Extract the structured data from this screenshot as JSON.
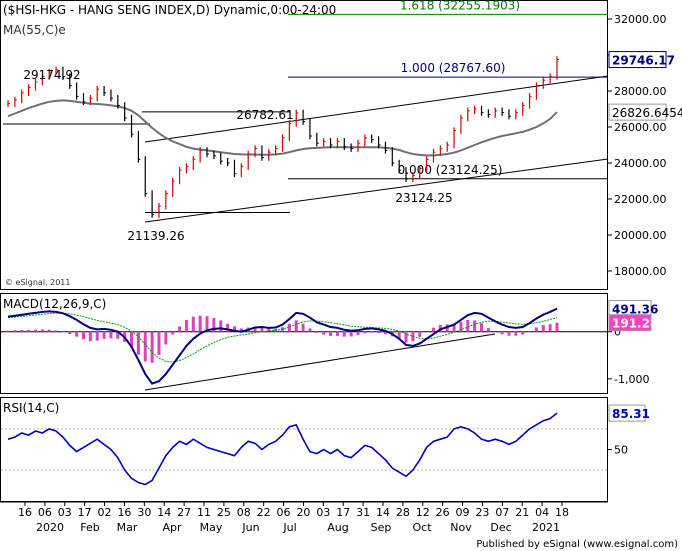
{
  "chart_data": [
    {
      "type": "line",
      "panel": "price",
      "title": "($HSI-HKG - HANG SENG INDEX,D) Dynamic,0:00-24:00",
      "subtitle": "MA(55,C)e",
      "watermark": "© eSignal, 2011",
      "series": [
        {
          "name": "$HSI-HKG",
          "color": "#d40000",
          "values": [
            27300,
            27500,
            27900,
            28200,
            28500,
            28800,
            29050,
            29174.92,
            28800,
            28300,
            27700,
            27400,
            27600,
            28100,
            27900,
            27600,
            27200,
            26500,
            25600,
            24200,
            22300,
            21139.26,
            21600,
            22300,
            23000,
            23600,
            23800,
            24200,
            24700,
            24500,
            24400,
            24100,
            24000,
            23400,
            23800,
            24500,
            24800,
            24300,
            24600,
            24800,
            25400,
            26200,
            26782.61,
            26300,
            25500,
            25100,
            25200,
            25000,
            25200,
            24900,
            24800,
            25100,
            25400,
            25300,
            25000,
            24700,
            24000,
            23600,
            23124.25,
            23300,
            23700,
            24200,
            24600,
            24800,
            25000,
            25800,
            26500,
            26900,
            27000,
            26800,
            26700,
            26900,
            26800,
            26600,
            26800,
            27200,
            27700,
            28300,
            28600,
            28800,
            29746.17
          ]
        },
        {
          "name": "MA(55,C)e",
          "color": "#707070",
          "values": [
            26600,
            26750,
            26900,
            27050,
            27180,
            27300,
            27400,
            27450,
            27480,
            27450,
            27400,
            27350,
            27300,
            27280,
            27250,
            27200,
            27150,
            27050,
            26900,
            26650,
            26300,
            25950,
            25650,
            25400,
            25200,
            25050,
            24900,
            24800,
            24750,
            24700,
            24650,
            24600,
            24550,
            24500,
            24480,
            24470,
            24470,
            24460,
            24460,
            24480,
            24520,
            24600,
            24700,
            24780,
            24820,
            24840,
            24860,
            24870,
            24880,
            24880,
            24870,
            24870,
            24880,
            24880,
            24870,
            24850,
            24800,
            24720,
            24600,
            24500,
            24450,
            24420,
            24420,
            24450,
            24500,
            24580,
            24700,
            24850,
            25000,
            25150,
            25280,
            25400,
            25500,
            25580,
            25650,
            25730,
            25850,
            26000,
            26200,
            26450,
            26826.6454
          ]
        }
      ],
      "ylim": [
        17000,
        33000
      ],
      "yticks": [
        "32000.00",
        "30000.00",
        "28000.00",
        "26000.00",
        "24000.00",
        "22000.00",
        "20000.00",
        "18000.00"
      ],
      "last_labels": [
        "29746.17",
        "26826.6454"
      ],
      "annotations": [
        "29174.92",
        "26782.61",
        "21139.26",
        "23124.25"
      ],
      "fib_lines": [
        {
          "label": "1.618 (32255.1903)",
          "value": 32255.1903,
          "color": "#008000"
        },
        {
          "label": "1.000 (28767.60)",
          "value": 28767.6,
          "color": "#000080"
        },
        {
          "label": "0.000 (23124.25)",
          "value": 23124.25,
          "color": "#000000"
        }
      ]
    },
    {
      "type": "line",
      "panel": "macd",
      "title": "MACD(12,26,9,C)",
      "ylim": [
        -1300,
        800
      ],
      "yticks": [
        "0",
        "-1,000"
      ],
      "last_labels": [
        "491.36",
        "191.28"
      ],
      "series": [
        {
          "name": "MACD",
          "color": "#000080",
          "values": [
            320,
            340,
            360,
            380,
            400,
            420,
            430,
            420,
            390,
            330,
            250,
            160,
            80,
            50,
            60,
            40,
            0,
            -120,
            -320,
            -600,
            -900,
            -1100,
            -1050,
            -900,
            -700,
            -500,
            -300,
            -150,
            -40,
            30,
            60,
            70,
            50,
            20,
            0,
            40,
            90,
            100,
            80,
            90,
            150,
            270,
            400,
            380,
            300,
            200,
            150,
            100,
            80,
            40,
            20,
            30,
            60,
            70,
            50,
            20,
            -50,
            -150,
            -280,
            -300,
            -250,
            -150,
            -50,
            50,
            100,
            150,
            250,
            350,
            400,
            380,
            300,
            220,
            150,
            100,
            80,
            100,
            180,
            280,
            360,
            420,
            491.36
          ]
        },
        {
          "name": "Signal",
          "color": "#00a000",
          "values": [
            300,
            310,
            325,
            340,
            355,
            370,
            385,
            395,
            395,
            380,
            355,
            320,
            280,
            240,
            210,
            180,
            150,
            95,
            10,
            -110,
            -270,
            -440,
            -560,
            -630,
            -640,
            -610,
            -550,
            -470,
            -380,
            -300,
            -230,
            -170,
            -120,
            -90,
            -70,
            -50,
            -20,
            0,
            15,
            30,
            55,
            100,
            160,
            210,
            230,
            225,
            210,
            190,
            170,
            145,
            120,
            105,
            95,
            90,
            80,
            70,
            50,
            10,
            -50,
            -100,
            -140,
            -150,
            -135,
            -95,
            -55,
            -10,
            40,
            100,
            160,
            200,
            220,
            220,
            205,
            185,
            165,
            160,
            170,
            190,
            220,
            260,
            300
          ]
        },
        {
          "name": "Histogram",
          "color": "#e040c0",
          "values": [
            20,
            30,
            35,
            40,
            45,
            50,
            45,
            25,
            -5,
            -50,
            -105,
            -160,
            -200,
            -190,
            -150,
            -140,
            -150,
            -215,
            -330,
            -490,
            -630,
            -660,
            -490,
            -270,
            -60,
            110,
            250,
            320,
            340,
            330,
            290,
            240,
            170,
            110,
            70,
            90,
            110,
            100,
            65,
            60,
            95,
            170,
            240,
            170,
            70,
            -25,
            -60,
            -90,
            -90,
            -105,
            -100,
            -75,
            -35,
            -20,
            -30,
            -50,
            -100,
            -160,
            -230,
            -200,
            -110,
            0,
            85,
            145,
            155,
            160,
            210,
            250,
            240,
            180,
            80,
            0,
            -55,
            -85,
            -85,
            -60,
            10,
            90,
            140,
            160,
            191.28
          ]
        }
      ]
    },
    {
      "type": "line",
      "panel": "rsi",
      "title": "RSI(14,C)",
      "ylim": [
        0,
        100
      ],
      "yticks": [
        "50"
      ],
      "last_labels": [
        "85.31"
      ],
      "series": [
        {
          "name": "RSI(14,C)",
          "color": "#0000c0",
          "values": [
            60,
            62,
            66,
            64,
            68,
            66,
            70,
            68,
            62,
            54,
            48,
            52,
            56,
            60,
            55,
            50,
            42,
            30,
            22,
            18,
            16,
            20,
            32,
            44,
            52,
            58,
            55,
            60,
            56,
            52,
            50,
            48,
            46,
            44,
            52,
            58,
            56,
            50,
            55,
            58,
            64,
            72,
            74,
            60,
            48,
            46,
            50,
            46,
            50,
            44,
            42,
            48,
            54,
            52,
            46,
            40,
            32,
            28,
            24,
            30,
            40,
            52,
            58,
            60,
            62,
            70,
            72,
            70,
            66,
            60,
            58,
            60,
            58,
            55,
            58,
            64,
            70,
            74,
            78,
            80,
            85.31
          ]
        }
      ]
    }
  ],
  "x_axis": {
    "day_labels": [
      "16",
      "06",
      "03",
      "17",
      "02",
      "16",
      "30",
      "14",
      "27",
      "11",
      "25",
      "08",
      "22",
      "06",
      "20",
      "03",
      "17",
      "31",
      "14",
      "28",
      "12",
      "26",
      "09",
      "23",
      "07",
      "21",
      "04",
      "18"
    ],
    "month_labels": [
      "2020",
      "Feb",
      "Mar",
      "Apr",
      "May",
      "Jun",
      "Jul",
      "Aug",
      "Sep",
      "Oct",
      "Nov",
      "Dec",
      "2021"
    ]
  },
  "footer": "Published by eSignal (www.esignal.com)"
}
